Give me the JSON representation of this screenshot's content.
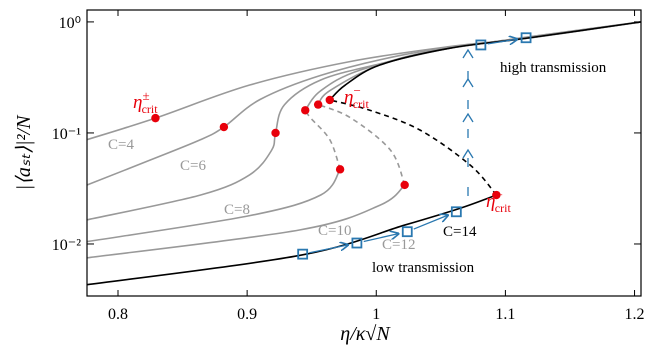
{
  "chart_data": {
    "type": "line",
    "xlabel": "η/κ√N",
    "ylabel": "|⟨aₛₜ⟩|²/N",
    "xlim": [
      0.776,
      1.205
    ],
    "ylim": [
      0.0034,
      1.28
    ],
    "log_y": true,
    "xticks": [
      0.8,
      0.9,
      1,
      1.1,
      1.2
    ],
    "yticks": [
      {
        "value": 1,
        "label": "10⁰"
      },
      {
        "value": 0.1,
        "label": "10⁻¹"
      },
      {
        "value": 0.01,
        "label": "10⁻²"
      }
    ],
    "series": [
      {
        "name": "C=4",
        "color": "#999999",
        "segments": [
          {
            "dashed": false,
            "x": [
              0.776,
              0.829,
              0.902,
              0.98,
              1.057,
              1.12,
              1.205
            ],
            "values": [
              0.087,
              0.136,
              0.27,
              0.44,
              0.6,
              0.72,
              1.0
            ]
          }
        ]
      },
      {
        "name": "C=6",
        "color": "#999999",
        "segments": [
          {
            "dashed": false,
            "x": [
              0.776,
              0.825,
              0.864,
              0.882,
              0.91,
              0.957,
              1.019,
              1.073,
              1.205
            ],
            "values": [
              0.034,
              0.057,
              0.087,
              0.113,
              0.2,
              0.33,
              0.5,
              0.62,
              1.0
            ]
          }
        ]
      },
      {
        "name": "C=8",
        "color": "#999999",
        "segments": [
          {
            "dashed": false,
            "x": [
              0.776,
              0.864,
              0.902,
              0.919,
              0.922,
              0.929,
              0.957,
              1.003,
              1.057,
              1.205
            ],
            "values": [
              0.0165,
              0.0276,
              0.042,
              0.07,
              0.1,
              0.18,
              0.3,
              0.42,
              0.58,
              1.0
            ]
          }
        ]
      },
      {
        "name": "C=10",
        "color": "#999999",
        "segments": [
          {
            "dashed": false,
            "x": [
              0.776,
              0.902,
              0.957,
              0.972
            ],
            "values": [
              0.0105,
              0.018,
              0.0276,
              0.047
            ]
          },
          {
            "dashed": true,
            "x": [
              0.972,
              0.964,
              0.949,
              0.945
            ],
            "values": [
              0.047,
              0.087,
              0.137,
              0.16
            ]
          },
          {
            "dashed": false,
            "x": [
              0.945,
              0.957,
              0.988,
              1.057,
              1.12,
              1.205
            ],
            "values": [
              0.16,
              0.24,
              0.37,
              0.58,
              0.72,
              1.0
            ]
          }
        ]
      },
      {
        "name": "C=12",
        "color": "#999999",
        "segments": [
          {
            "dashed": false,
            "x": [
              0.776,
              0.941,
              1.003,
              1.022
            ],
            "values": [
              0.0075,
              0.0134,
              0.0224,
              0.034
            ]
          },
          {
            "dashed": true,
            "x": [
              1.022,
              1.011,
              0.98,
              0.955
            ],
            "values": [
              0.034,
              0.07,
              0.137,
              0.18
            ]
          },
          {
            "dashed": false,
            "x": [
              0.955,
              0.964,
              1.003,
              1.057,
              1.12,
              1.205
            ],
            "values": [
              0.18,
              0.24,
              0.41,
              0.58,
              0.72,
              1.0
            ]
          }
        ]
      },
      {
        "name": "C=14",
        "color": "#000000",
        "segments": [
          {
            "dashed": false,
            "x": [
              0.776,
              0.941,
              1.022,
              1.065,
              1.093
            ],
            "values": [
              0.0043,
              0.0079,
              0.0148,
              0.021,
              0.0276
            ]
          },
          {
            "dashed": true,
            "x": [
              1.093,
              1.073,
              1.034,
              0.995,
              0.964
            ],
            "values": [
              0.0276,
              0.051,
              0.106,
              0.16,
              0.198
            ]
          },
          {
            "dashed": false,
            "x": [
              0.964,
              0.976,
              1.003,
              1.057,
              1.119,
              1.205
            ],
            "values": [
              0.198,
              0.27,
              0.41,
              0.58,
              0.72,
              1.0
            ]
          }
        ]
      }
    ],
    "critical_points": {
      "color": "#e8000b",
      "x": [
        0.829,
        0.882,
        0.922,
        0.972,
        0.945,
        1.022,
        0.955,
        1.093,
        0.964
      ],
      "values": [
        0.136,
        0.113,
        0.1,
        0.047,
        0.16,
        0.034,
        0.18,
        0.0276,
        0.198
      ]
    },
    "markers": [
      {
        "color": "#2a78b0",
        "x": [
          0.943,
          0.985,
          1.024,
          1.062
        ],
        "values": [
          0.0081,
          0.0102,
          0.0129,
          0.0195
        ]
      },
      {
        "color": "#2a78b0",
        "x": [
          1.081,
          1.116
        ],
        "values": [
          0.62,
          0.72
        ]
      }
    ],
    "annotations": [
      {
        "symbol": "η",
        "sub": "crit",
        "sup": "±"
      },
      {
        "symbol": "η",
        "sub": "crit",
        "sup": "−"
      },
      {
        "symbol": "η",
        "sub": "crit",
        "sup": "+"
      }
    ],
    "regions": [
      "high transmission",
      "low transmission"
    ]
  }
}
